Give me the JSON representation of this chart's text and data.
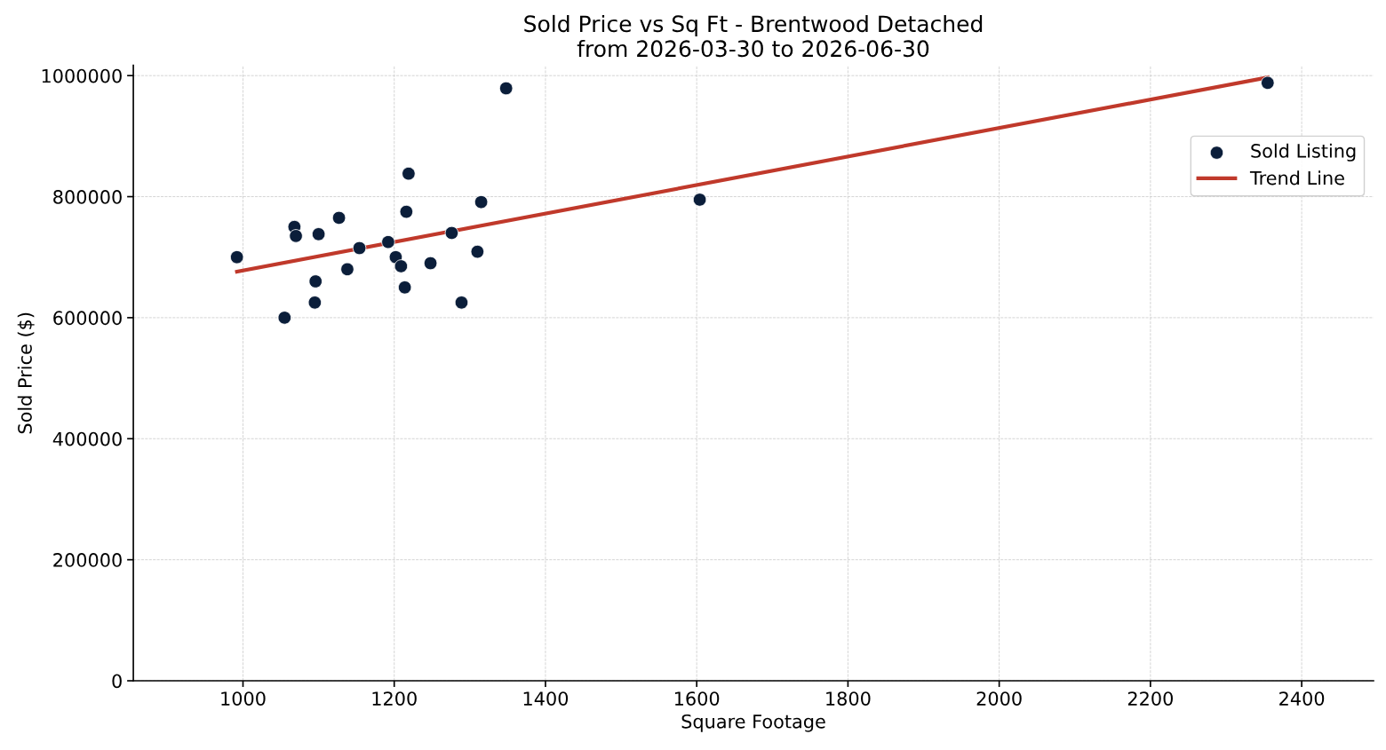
{
  "chart_data": {
    "type": "scatter",
    "title": "Sold Price vs Sq Ft - Brentwood Detached\nfrom 2026-03-30 to 2026-06-30",
    "xlabel": "Square Footage",
    "ylabel": "Sold Price ($)",
    "xlim": [
      855,
      2495
    ],
    "ylim": [
      0,
      1017000
    ],
    "xticks": [
      1000,
      1200,
      1400,
      1600,
      1800,
      2000,
      2200,
      2400
    ],
    "yticks": [
      0,
      200000,
      400000,
      600000,
      800000,
      1000000
    ],
    "grid": true,
    "legend": "top right",
    "series": [
      {
        "name": "Sold Listing",
        "color": "#0b1e3a",
        "marker": "circle",
        "x": [
          992,
          1055,
          1068,
          1070,
          1100,
          1096,
          1095,
          1127,
          1138,
          1154,
          1192,
          1202,
          1209,
          1214,
          1216,
          1219,
          1248,
          1276,
          1289,
          1310,
          1315,
          1348,
          1604,
          2355
        ],
        "values": [
          700000,
          600000,
          750000,
          735000,
          738000,
          660000,
          625000,
          765000,
          680000,
          715000,
          725000,
          700000,
          685000,
          650000,
          775000,
          838000,
          690000,
          740000,
          625000,
          709000,
          791000,
          979000,
          795000,
          988000
        ]
      },
      {
        "name": "Trend Line",
        "type": "line",
        "color": "#c0392b",
        "line_style": "solid",
        "x": [
          992,
          2355
        ],
        "values": [
          676000,
          997000
        ]
      }
    ]
  }
}
